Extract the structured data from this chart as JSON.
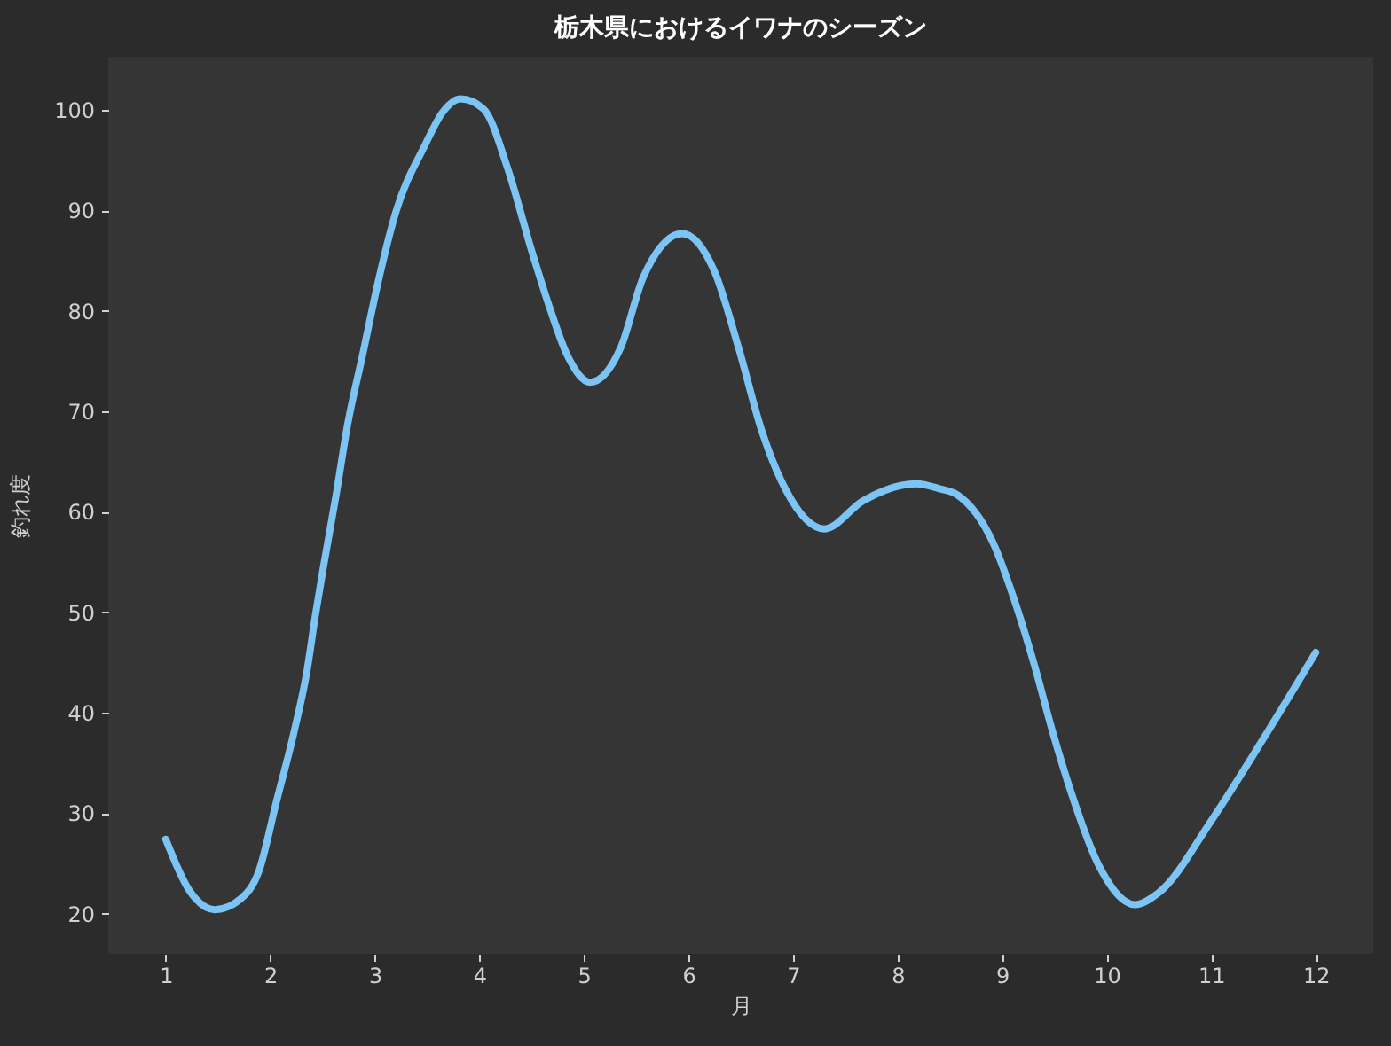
{
  "chart_data": {
    "type": "line",
    "title": "栃木県におけるイワナのシーズン",
    "xlabel": "月",
    "ylabel": "釣れ度",
    "x": [
      1.0,
      1.22,
      1.47,
      1.72,
      1.89,
      2.06,
      2.23,
      2.35,
      2.43,
      2.51,
      2.63,
      2.74,
      2.885,
      3.03,
      3.2,
      3.48,
      3.65,
      3.82,
      4.04,
      4.27,
      4.5,
      4.67,
      4.84,
      5.06,
      5.35,
      5.57,
      5.94,
      6.25,
      6.48,
      6.7,
      6.93,
      7.3,
      7.67,
      8.18,
      8.4,
      8.57,
      8.91,
      9.14,
      9.31,
      9.48,
      9.65,
      9.93,
      10.27,
      10.5,
      11.01,
      11.51,
      12.0
    ],
    "series": [
      {
        "color": "#7cc4f4",
        "values": [
          27.4,
          22.4,
          20.4,
          21.5,
          24.2,
          31.2,
          38.2,
          44.1,
          49.6,
          54.6,
          61.7,
          68.7,
          75.7,
          82.8,
          89.8,
          96.5,
          99.8,
          101.1,
          100.1,
          94.2,
          86.0,
          80.4,
          75.6,
          72.9,
          76.3,
          83.4,
          87.7,
          83.9,
          76.3,
          68.1,
          62.2,
          58.3,
          61.1,
          62.8,
          62.3,
          61.7,
          57.0,
          50.5,
          44.7,
          38.2,
          32.4,
          24.7,
          20.9,
          22.1,
          29.4,
          37.6,
          46.0
        ]
      }
    ],
    "xlim": [
      0.45,
      12.55
    ],
    "ylim": [
      16,
      105.3
    ],
    "xticks": [
      1,
      2,
      3,
      4,
      5,
      6,
      7,
      8,
      9,
      10,
      11,
      12
    ],
    "yticks": [
      20,
      30,
      40,
      50,
      60,
      70,
      80,
      90,
      100
    ]
  }
}
